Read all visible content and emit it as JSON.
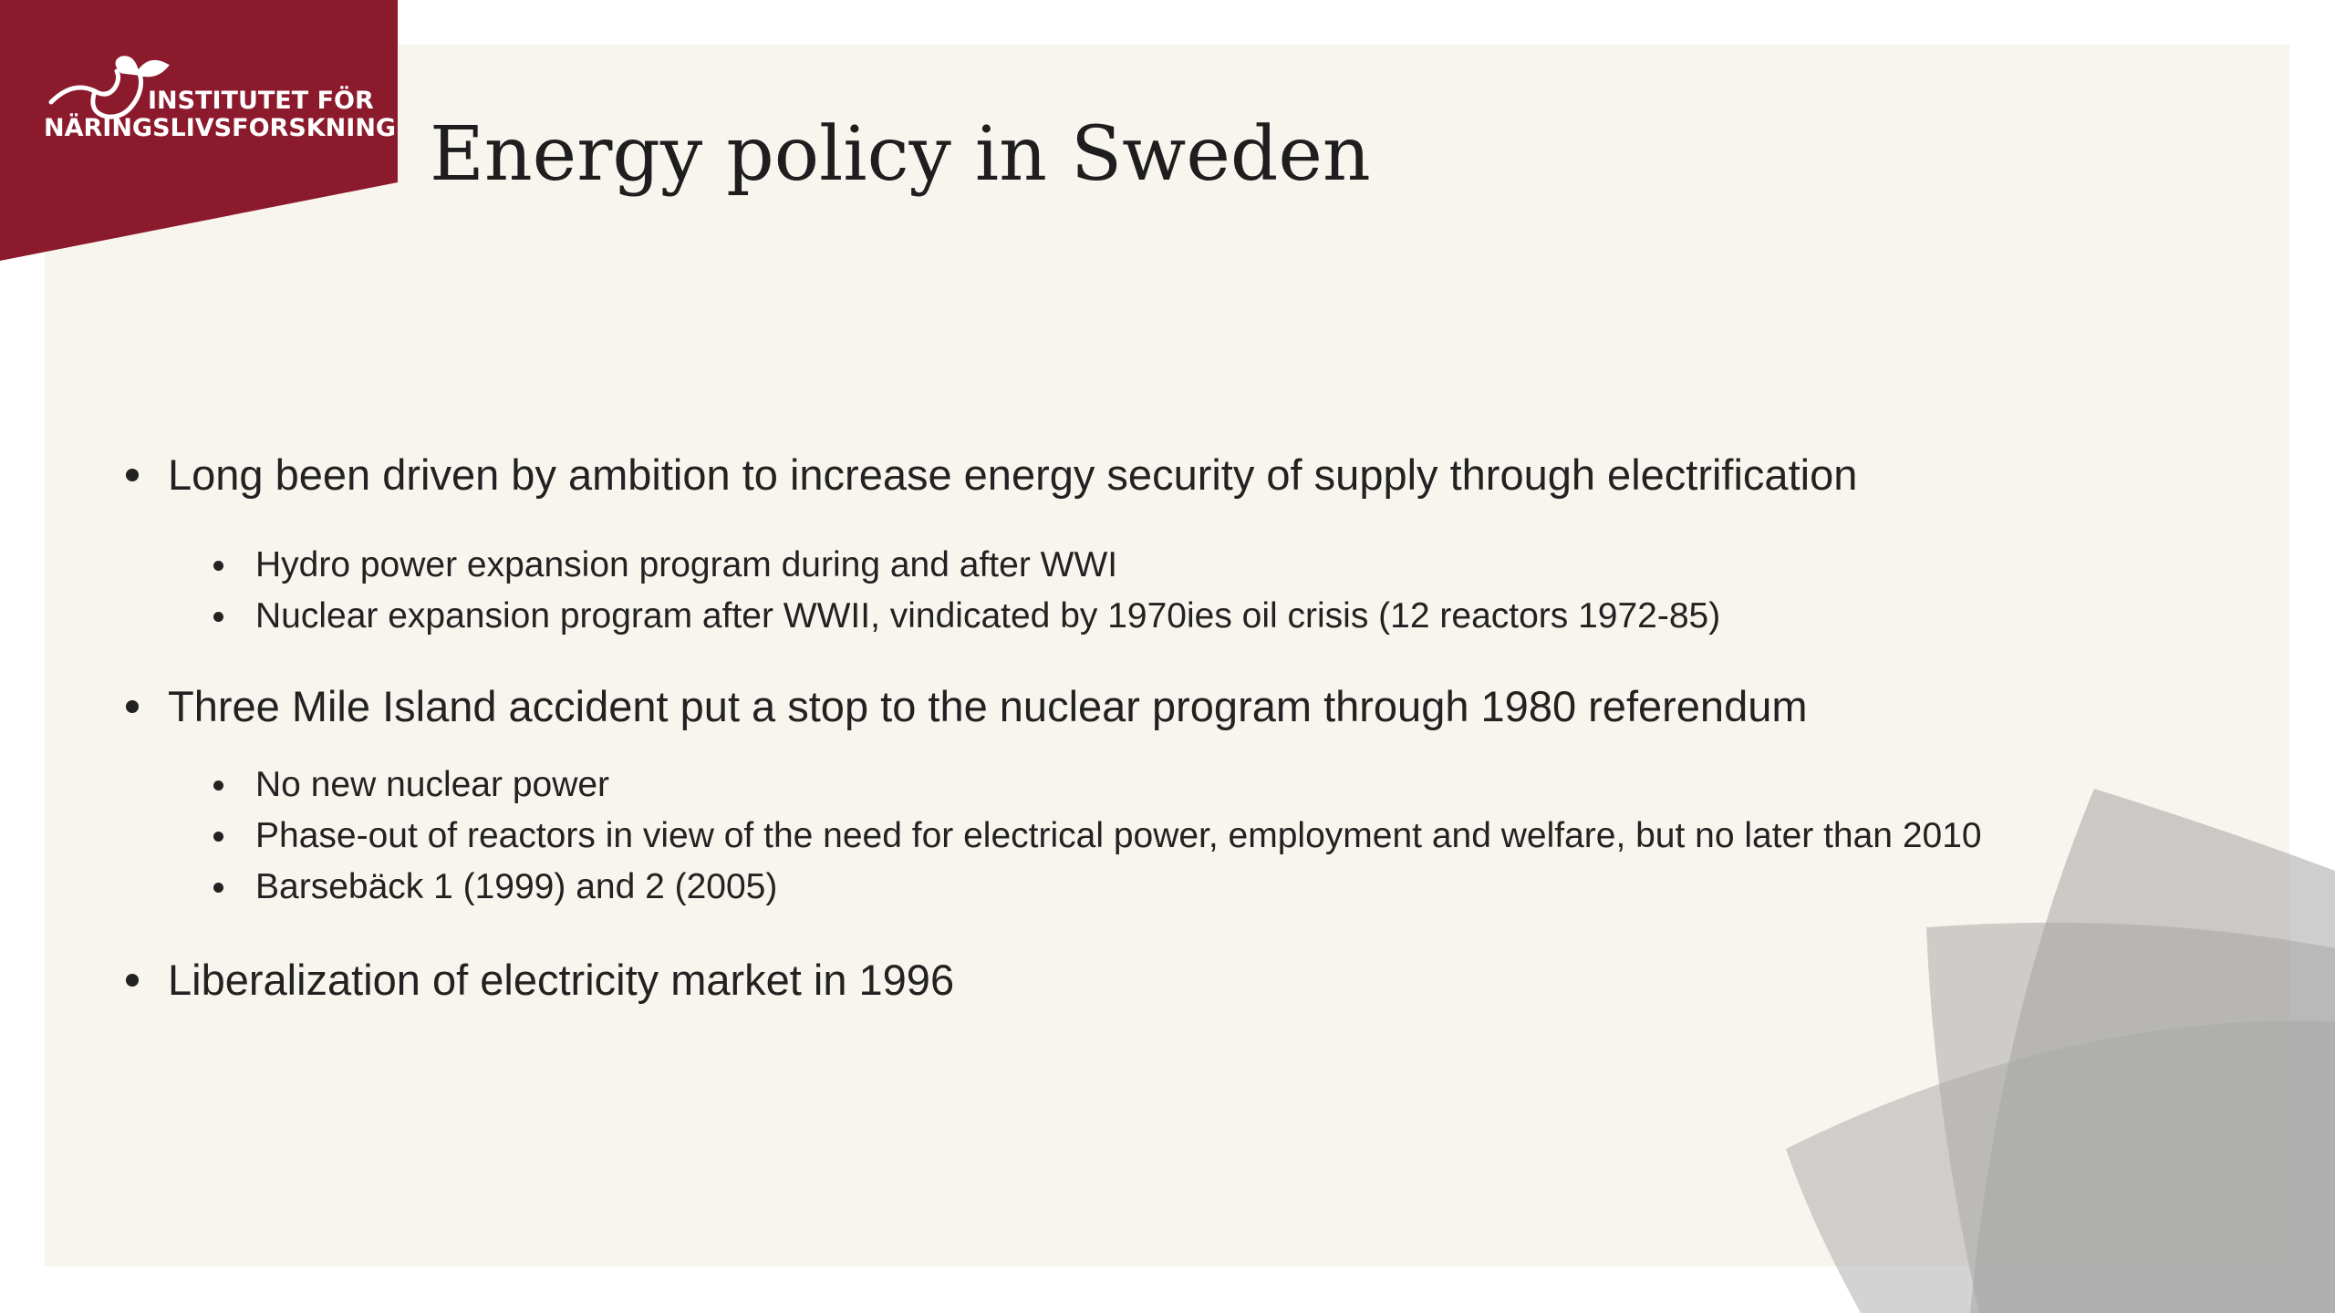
{
  "brand": {
    "line1": "INSTITUTET FÖR",
    "line2": "NÄRINGSLIVSFORSKNING",
    "color": "#8b1a2c"
  },
  "slide": {
    "title": "Energy policy in Sweden",
    "background": "#f8f5ee"
  },
  "bullets": [
    {
      "text": "Long been driven by ambition to increase energy security of supply through electrification",
      "sub": [
        "Hydro power expansion program during and after WWI",
        "Nuclear expansion program after WWII, vindicated by 1970ies oil crisis (12 reactors 1972-85)"
      ]
    },
    {
      "text": "Three Mile Island accident put a stop to the nuclear program through 1980 referendum",
      "sub": [
        "No new nuclear power",
        "Phase-out of reactors in view of the need for electrical power, employment and welfare, but no later than 2010",
        "Barsebäck 1 (1999) and 2 (2005)"
      ]
    },
    {
      "text": "Liberalization of electricity market in 1996",
      "sub": []
    }
  ]
}
